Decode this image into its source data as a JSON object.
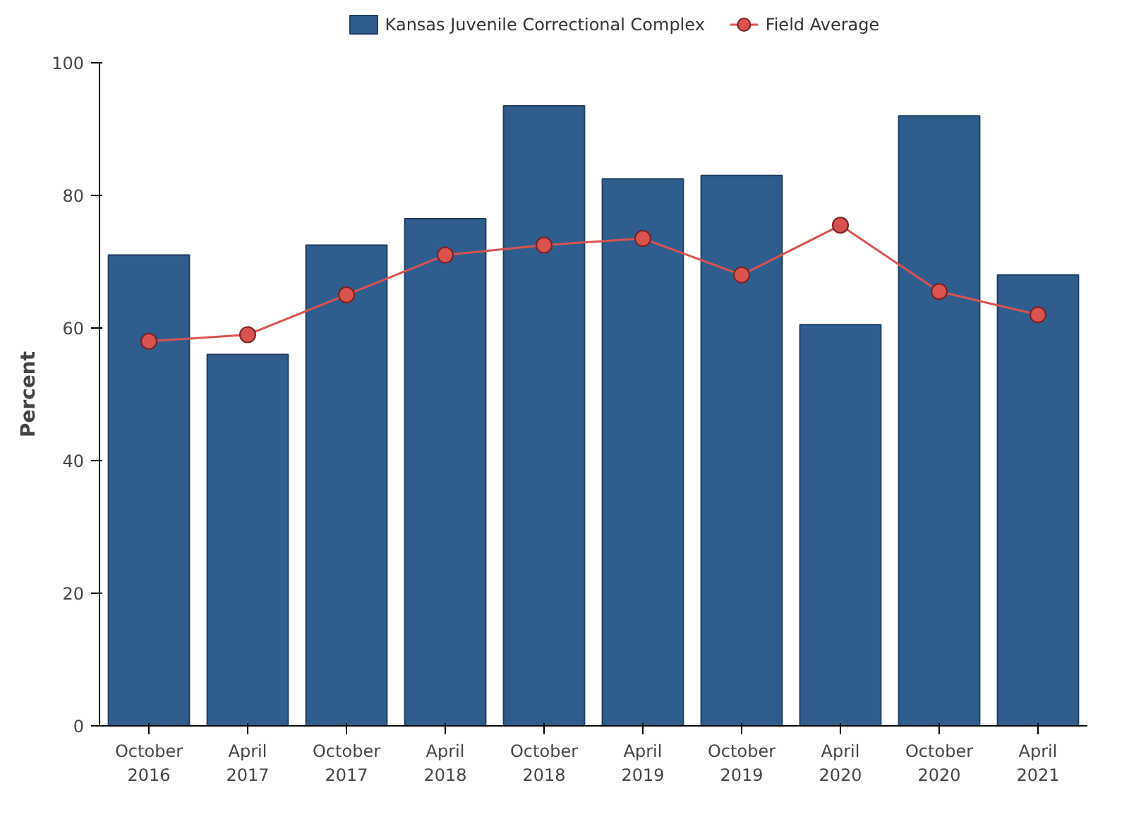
{
  "chart_data": {
    "type": "bar",
    "ylabel": "Percent",
    "categories": [
      "October\n2016",
      "April\n2017",
      "October\n2017",
      "April\n2018",
      "October\n2018",
      "April\n2019",
      "October\n2019",
      "April\n2020",
      "October\n2020",
      "April\n2021"
    ],
    "series": [
      {
        "name": "Kansas Juvenile Correctional Complex",
        "color": "#2f5e8e",
        "values": [
          71,
          56,
          72.5,
          76.5,
          93.5,
          82.5,
          83,
          60.5,
          92,
          68
        ]
      },
      {
        "name": "Field Average",
        "type": "line",
        "color": "#d9534f",
        "marker": "circle",
        "values": [
          58,
          59,
          65,
          71,
          72.5,
          73.5,
          68,
          75.5,
          65.5,
          62
        ]
      }
    ],
    "ylim": [
      0,
      100
    ],
    "yticks": [
      0,
      20,
      40,
      60,
      80,
      100
    ],
    "grid": false,
    "legend": "top"
  }
}
